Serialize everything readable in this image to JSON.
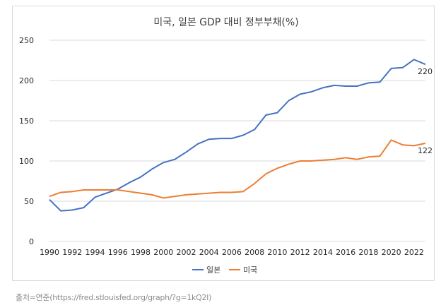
{
  "chart_data": {
    "type": "line",
    "title": "미국, 일본 GDP 대비 정부부채(%)",
    "xlabel": "",
    "ylabel": "",
    "ylim": [
      0,
      250
    ],
    "yticks": [
      "0",
      "50",
      "100",
      "150",
      "200",
      "250"
    ],
    "xticks": [
      "1990",
      "1992",
      "1994",
      "1996",
      "1998",
      "2000",
      "2002",
      "2004",
      "2006",
      "2008",
      "2010",
      "2012",
      "2014",
      "2016",
      "2018",
      "2020",
      "2022"
    ],
    "grid": true,
    "legend_position": "bottom",
    "x": [
      1990,
      1991,
      1992,
      1993,
      1994,
      1995,
      1996,
      1997,
      1998,
      1999,
      2000,
      2001,
      2002,
      2003,
      2004,
      2005,
      2006,
      2007,
      2008,
      2009,
      2010,
      2011,
      2012,
      2013,
      2014,
      2015,
      2016,
      2017,
      2018,
      2019,
      2020,
      2021,
      2022,
      2023
    ],
    "series": [
      {
        "name": "일본",
        "color": "#4472c4",
        "end_label": "220",
        "values": [
          52,
          38,
          39,
          42,
          55,
          60,
          65,
          73,
          80,
          90,
          98,
          102,
          111,
          121,
          127,
          128,
          128,
          132,
          139,
          157,
          160,
          175,
          183,
          186,
          191,
          194,
          193,
          193,
          197,
          198,
          215,
          216,
          226,
          220
        ]
      },
      {
        "name": "미국",
        "color": "#ed7d31",
        "end_label": "122",
        "values": [
          56,
          61,
          62,
          64,
          64,
          64,
          64,
          62,
          60,
          58,
          54,
          56,
          58,
          59,
          60,
          61,
          61,
          62,
          72,
          84,
          91,
          96,
          100,
          100,
          101,
          102,
          104,
          102,
          105,
          106,
          126,
          120,
          119,
          122
        ]
      }
    ]
  },
  "source_text": "출처=연준(https://fred.stlouisfed.org/graph/?g=1kQ2I)"
}
